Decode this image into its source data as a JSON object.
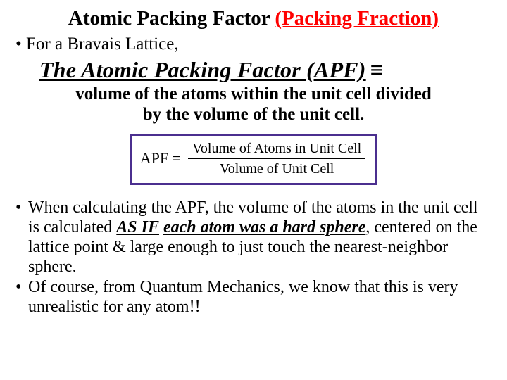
{
  "title": {
    "plain": "Atomic Packing Factor ",
    "red": "(Packing Fraction)"
  },
  "bullet1": {
    "marker": "•",
    "text": "For a Bravais Lattice,"
  },
  "def": {
    "heading": "The Atomic Packing Factor (APF)",
    "symbol": "≡",
    "line1": "volume of the atoms within the unit cell divided",
    "line2": "by the volume of the unit cell."
  },
  "formula": {
    "lhs": "APF =",
    "numerator": "Volume of Atoms in Unit Cell",
    "denominator": "Volume of Unit Cell"
  },
  "body": {
    "b1_pre": "When calculating the APF, the volume of the atoms in the unit cell is calculated ",
    "b1_asif": "AS IF",
    "b1_mid": " ",
    "b1_hard": "each atom was a hard sphere",
    "b1_post": ", centered on the lattice point & large enough to just touch the nearest-neighbor sphere.",
    "b2": "Of course, from Quantum Mechanics, we know that this is very unrealistic for any atom!!",
    "marker": "•"
  },
  "colors": {
    "accent_red": "#ff0000",
    "box_border": "#4b2f8f",
    "text": "#000000",
    "background": "#ffffff"
  }
}
